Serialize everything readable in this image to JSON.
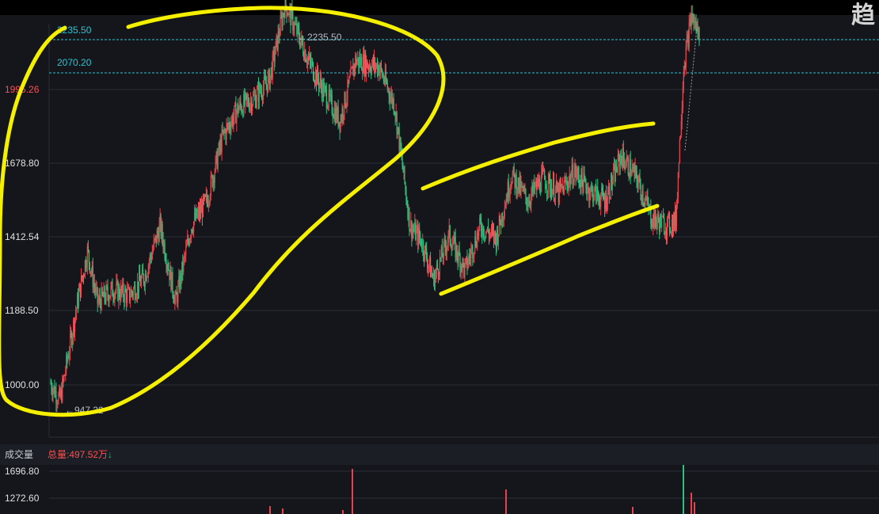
{
  "colors": {
    "background": "#14161b",
    "grid": "#2a2d35",
    "up": "#e8434c",
    "down": "#2ec27e",
    "reference_line": "#29c6d6",
    "highlight": "#f5f000",
    "axis_label": "#e0e0e0",
    "axis_label_red": "#ff4d4f"
  },
  "corner_glyph": "趋",
  "chart_data": [
    {
      "type": "candlestick",
      "title": "",
      "yticks": [
        "2235.50",
        "2070.20",
        "1995.26",
        "1678.80",
        "1412.54",
        "1188.50",
        "1000.00"
      ],
      "reference_lines": [
        {
          "value": 2235.5,
          "label": "2235.50"
        },
        {
          "value": 2070.2,
          "label": "2070.20"
        }
      ],
      "annotations": {
        "high": "←2235.50",
        "low": "←947.32"
      },
      "max_value": 2235.5,
      "min_value": 947.32,
      "approx_price_path": [
        {
          "i": 0,
          "v": 1005
        },
        {
          "i": 12,
          "v": 950
        },
        {
          "i": 35,
          "v": 1270
        },
        {
          "i": 47,
          "v": 1420
        },
        {
          "i": 60,
          "v": 1260
        },
        {
          "i": 80,
          "v": 1300
        },
        {
          "i": 100,
          "v": 1280
        },
        {
          "i": 120,
          "v": 1340
        },
        {
          "i": 140,
          "v": 1500
        },
        {
          "i": 160,
          "v": 1260
        },
        {
          "i": 180,
          "v": 1500
        },
        {
          "i": 200,
          "v": 1580
        },
        {
          "i": 220,
          "v": 1780
        },
        {
          "i": 240,
          "v": 1870
        },
        {
          "i": 260,
          "v": 1900
        },
        {
          "i": 280,
          "v": 1960
        },
        {
          "i": 300,
          "v": 2200
        },
        {
          "i": 330,
          "v": 2020
        },
        {
          "i": 350,
          "v": 1920
        },
        {
          "i": 370,
          "v": 1830
        },
        {
          "i": 390,
          "v": 2020
        },
        {
          "i": 420,
          "v": 2000
        },
        {
          "i": 440,
          "v": 1880
        },
        {
          "i": 460,
          "v": 1500
        },
        {
          "i": 475,
          "v": 1450
        },
        {
          "i": 490,
          "v": 1330
        },
        {
          "i": 510,
          "v": 1470
        },
        {
          "i": 530,
          "v": 1360
        },
        {
          "i": 550,
          "v": 1500
        },
        {
          "i": 570,
          "v": 1460
        },
        {
          "i": 590,
          "v": 1660
        },
        {
          "i": 610,
          "v": 1580
        },
        {
          "i": 630,
          "v": 1650
        },
        {
          "i": 650,
          "v": 1600
        },
        {
          "i": 670,
          "v": 1670
        },
        {
          "i": 690,
          "v": 1610
        },
        {
          "i": 710,
          "v": 1580
        },
        {
          "i": 730,
          "v": 1720
        },
        {
          "i": 750,
          "v": 1650
        },
        {
          "i": 770,
          "v": 1520
        },
        {
          "i": 790,
          "v": 1500
        },
        {
          "i": 800,
          "v": 1520
        },
        {
          "i": 810,
          "v": 2000
        },
        {
          "i": 820,
          "v": 2160
        },
        {
          "i": 830,
          "v": 2100
        }
      ],
      "volume": {
        "title": "成交量",
        "total_label": "总量:497.52万",
        "total_arrow": "↓",
        "yticks": [
          "1696.80",
          "1272.60"
        ]
      }
    }
  ]
}
